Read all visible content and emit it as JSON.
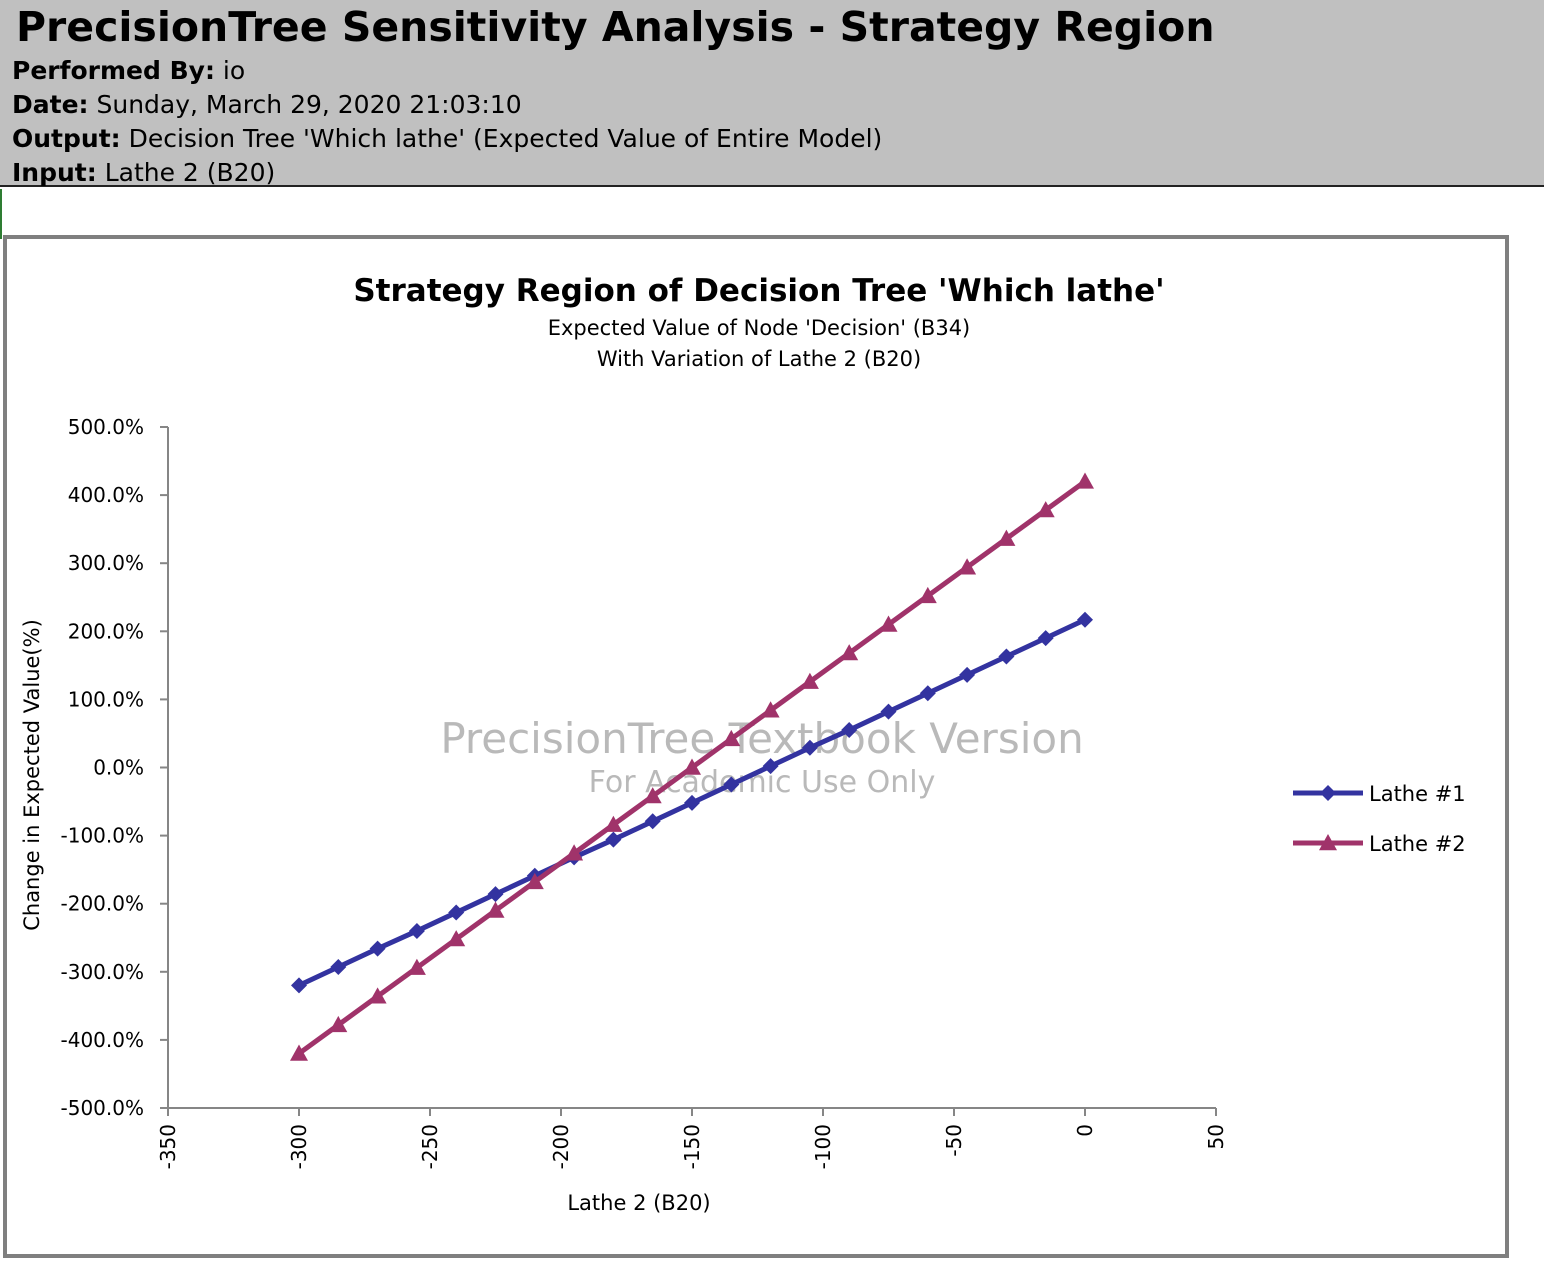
{
  "header": {
    "title": "PrecisionTree Sensitivity Analysis - Strategy Region",
    "performed_by_label": "Performed By:",
    "performed_by_value": "io",
    "date_label": "Date:",
    "date_value": "Sunday, March 29, 2020 21:03:10",
    "output_label": "Output:",
    "output_value": "Decision Tree 'Which lathe' (Expected Value of Entire Model)",
    "input_label": "Input:",
    "input_value": "Lathe 2 (B20)"
  },
  "watermark": {
    "line1": "PrecisionTree Textbook Version",
    "line2": "For Academic Use Only"
  },
  "chart_data": {
    "type": "line",
    "title": "Strategy Region of Decision Tree 'Which lathe'",
    "subtitle_lines": [
      "Expected Value of Node 'Decision' (B34)",
      "With Variation of Lathe 2 (B20)"
    ],
    "xlabel": "Lathe 2 (B20)",
    "ylabel": "Change in Expected Value(%)",
    "xlim": [
      -350,
      50
    ],
    "ylim": [
      -500,
      500
    ],
    "x_ticks": [
      -350,
      -300,
      -250,
      -200,
      -150,
      -100,
      -50,
      0,
      50
    ],
    "x_tick_labels": [
      "-350",
      "-300",
      "-250",
      "-200",
      "-150",
      "-100",
      "-50",
      "0",
      "50"
    ],
    "y_ticks": [
      500,
      400,
      300,
      200,
      100,
      0,
      -100,
      -200,
      -300,
      -400,
      -500
    ],
    "y_tick_labels": [
      "500.0%",
      "400.0%",
      "300.0%",
      "200.0%",
      "100.0%",
      "0.0%",
      "-100.0%",
      "-200.0%",
      "-300.0%",
      "-400.0%",
      "-500.0%"
    ],
    "grid": false,
    "legend_position": "right",
    "x": [
      -300,
      -285,
      -270,
      -255,
      -240,
      -225,
      -210,
      -195,
      -180,
      -165,
      -150,
      -135,
      -120,
      -105,
      -90,
      -75,
      -60,
      -45,
      -30,
      -15,
      0
    ],
    "series": [
      {
        "name": "Lathe #1",
        "marker": "diamond",
        "color": "#3333a0",
        "values": [
          -320,
          -293,
          -266,
          -240,
          -213,
          -186,
          -159,
          -132,
          -106,
          -79,
          -52,
          -25,
          2,
          29,
          55,
          82,
          109,
          136,
          163,
          190,
          217
        ]
      },
      {
        "name": "Lathe  #2",
        "marker": "triangle",
        "color": "#a0336a",
        "values": [
          -420,
          -378,
          -336,
          -294,
          -252,
          -210,
          -168,
          -126,
          -84,
          -42,
          0,
          42,
          84,
          126,
          168,
          210,
          252,
          294,
          336,
          378,
          420
        ]
      }
    ]
  }
}
